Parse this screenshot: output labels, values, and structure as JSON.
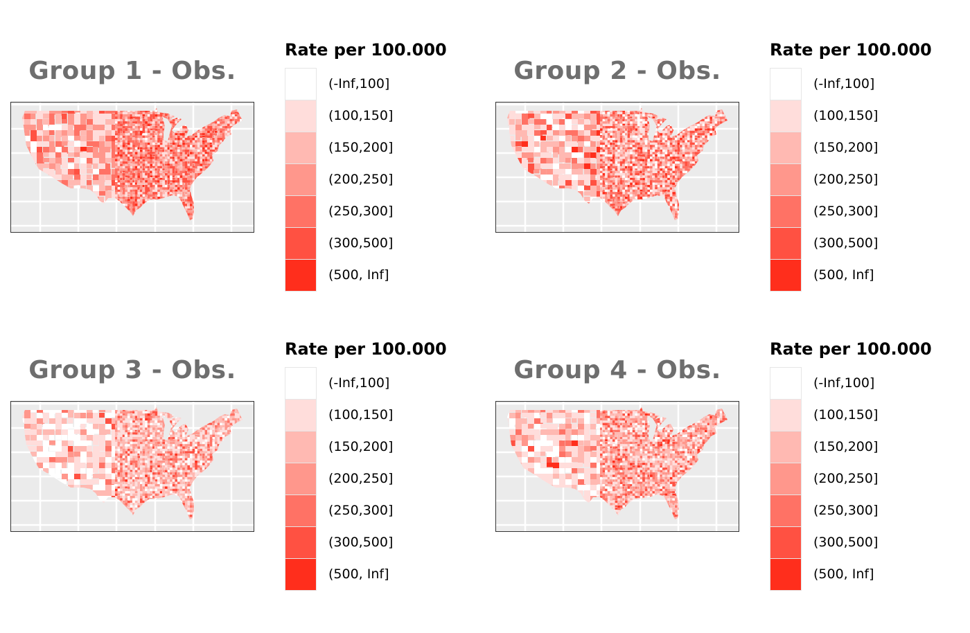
{
  "figure": {
    "legend_title": "Rate per 100.000",
    "bins": [
      {
        "label": "(-Inf,100]",
        "color": "#FFFFFF"
      },
      {
        "label": "(100,150]",
        "color": "#FFDDDB"
      },
      {
        "label": "(150,200]",
        "color": "#FFB9B2"
      },
      {
        "label": "(200,250]",
        "color": "#FF978C"
      },
      {
        "label": "(250,300]",
        "color": "#FF7265"
      },
      {
        "label": "(300,500]",
        "color": "#FF5142"
      },
      {
        "label": "(500, Inf]",
        "color": "#FF2E1C"
      }
    ],
    "panel_background": "#EBEBEB",
    "grid_color": "#FFFFFF"
  },
  "panels": [
    {
      "title": "Group 1 - Obs.",
      "west_mix": [
        0.05,
        0.2,
        0.25,
        0.22,
        0.16,
        0.1,
        0.02
      ],
      "east_mix": [
        0.03,
        0.12,
        0.18,
        0.22,
        0.22,
        0.18,
        0.05
      ]
    },
    {
      "title": "Group 2 - Obs.",
      "west_mix": [
        0.15,
        0.3,
        0.22,
        0.14,
        0.1,
        0.07,
        0.02
      ],
      "east_mix": [
        0.1,
        0.15,
        0.18,
        0.2,
        0.18,
        0.15,
        0.04
      ]
    },
    {
      "title": "Group 3 - Obs.",
      "west_mix": [
        0.35,
        0.35,
        0.18,
        0.07,
        0.03,
        0.02,
        0.0
      ],
      "east_mix": [
        0.1,
        0.25,
        0.28,
        0.2,
        0.1,
        0.06,
        0.01
      ]
    },
    {
      "title": "Group 4 - Obs.",
      "west_mix": [
        0.22,
        0.38,
        0.2,
        0.1,
        0.06,
        0.03,
        0.01
      ],
      "east_mix": [
        0.08,
        0.2,
        0.24,
        0.22,
        0.15,
        0.09,
        0.02
      ]
    }
  ],
  "chart_data": {
    "type": "choropleth",
    "title": "",
    "legend_title": "Rate per 100.000",
    "legend_labels": [
      "(-Inf,100]",
      "(100,150]",
      "(150,200]",
      "(200,250]",
      "(250,300]",
      "(300,500]",
      "(500, Inf]"
    ],
    "panels": [
      "Group 1 - Obs.",
      "Group 2 - Obs.",
      "Group 3 - Obs.",
      "Group 4 - Obs."
    ]
  }
}
